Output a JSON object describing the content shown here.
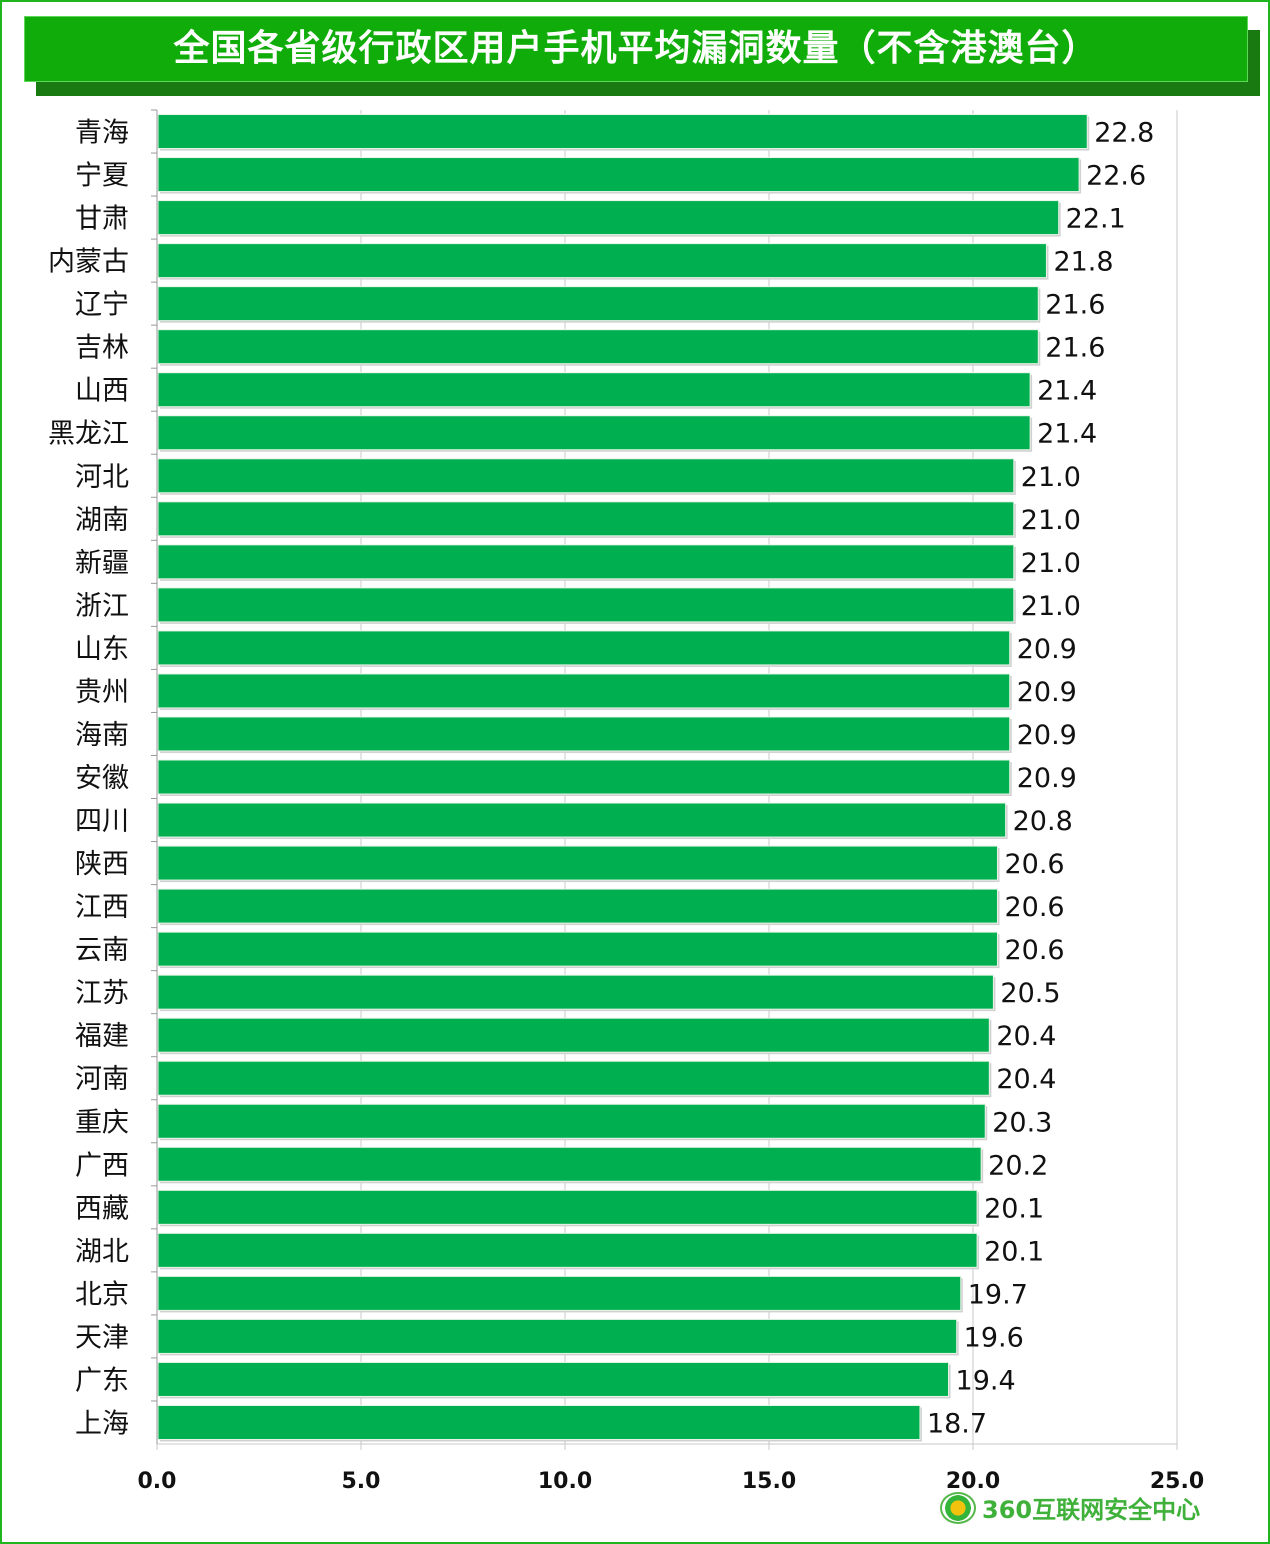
{
  "chart_data": {
    "type": "bar",
    "orientation": "horizontal",
    "title": "全国各省级行政区用户手机平均漏洞数量（不含港澳台）",
    "categories": [
      "青海",
      "宁夏",
      "甘肃",
      "内蒙古",
      "辽宁",
      "吉林",
      "山西",
      "黑龙江",
      "河北",
      "湖南",
      "新疆",
      "浙江",
      "山东",
      "贵州",
      "海南",
      "安徽",
      "四川",
      "陕西",
      "江西",
      "云南",
      "江苏",
      "福建",
      "河南",
      "重庆",
      "广西",
      "西藏",
      "湖北",
      "北京",
      "天津",
      "广东",
      "上海"
    ],
    "values": [
      22.8,
      22.6,
      22.1,
      21.8,
      21.6,
      21.6,
      21.4,
      21.4,
      21.0,
      21.0,
      21.0,
      21.0,
      20.9,
      20.9,
      20.9,
      20.9,
      20.8,
      20.6,
      20.6,
      20.6,
      20.5,
      20.4,
      20.4,
      20.3,
      20.2,
      20.1,
      20.1,
      19.7,
      19.6,
      19.4,
      18.7
    ],
    "xlim": [
      0,
      25
    ],
    "xticks": [
      "0.0",
      "5.0",
      "10.0",
      "15.0",
      "20.0",
      "25.0"
    ],
    "grid": true,
    "bar_color": "#00b050",
    "xlabel": "",
    "ylabel": ""
  },
  "logo_text": "360互联网安全中心"
}
